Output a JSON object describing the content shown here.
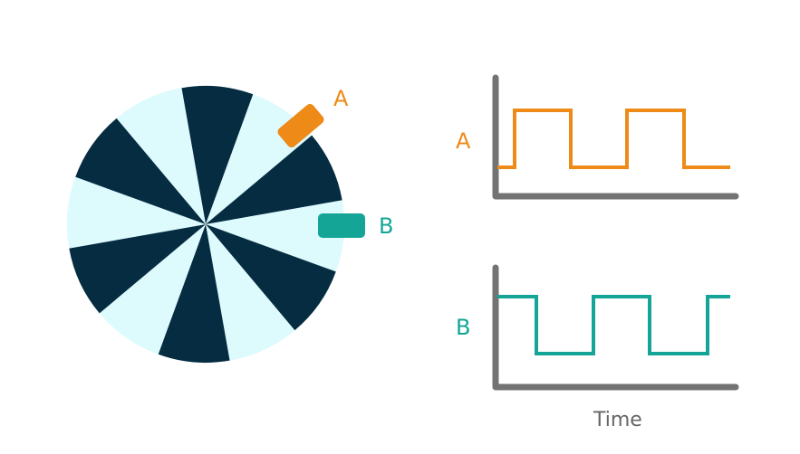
{
  "encoder": {
    "sensor_a_label": "A",
    "sensor_b_label": "B",
    "segment_count": 12
  },
  "waveforms": {
    "a_label": "A",
    "b_label": "B",
    "time_label": "Time"
  },
  "colors": {
    "dark_segment": "#062c42",
    "light_segment": "#ddfafc",
    "sensor_a": "#ee8a18",
    "sensor_b": "#14a597",
    "axis": "#737373",
    "time_text": "#666666"
  }
}
